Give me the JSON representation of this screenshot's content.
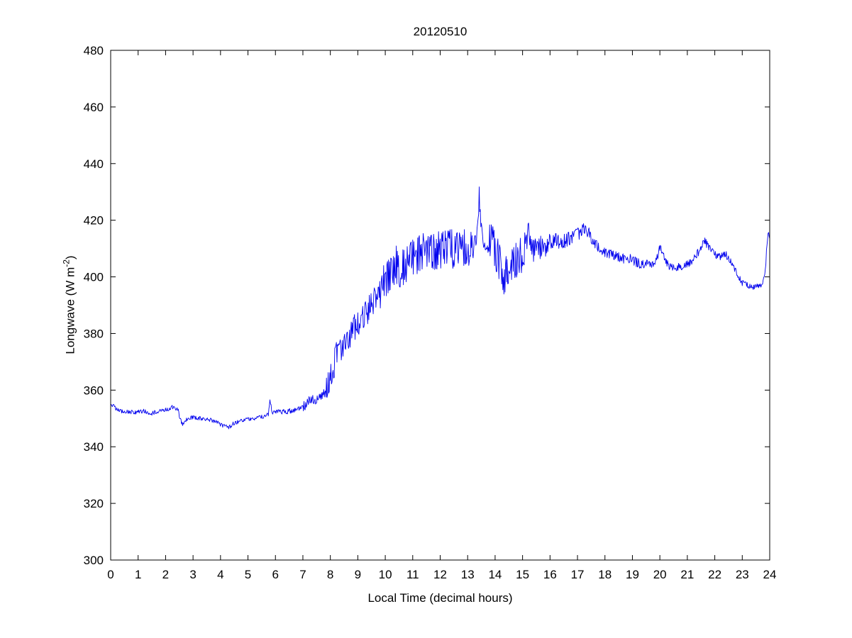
{
  "chart_data": {
    "type": "line",
    "title": "20120510",
    "xlabel": "Local Time (decimal hours)",
    "ylabel": "Longwave (W m-2)",
    "ylabel_parts": {
      "prefix": "Longwave (W m",
      "sup": "-2",
      "suffix": ")"
    },
    "xlim": [
      0,
      24
    ],
    "ylim": [
      300,
      480
    ],
    "x_ticks": [
      0,
      1,
      2,
      3,
      4,
      5,
      6,
      7,
      8,
      9,
      10,
      11,
      12,
      13,
      14,
      15,
      16,
      17,
      18,
      19,
      20,
      21,
      22,
      23,
      24
    ],
    "y_ticks": [
      300,
      320,
      340,
      360,
      380,
      400,
      420,
      440,
      460,
      480
    ],
    "grid": false,
    "legend": "none",
    "line_color": "#0000ee",
    "axes_color": "#000000",
    "background": "#ffffff",
    "y_clamp": [
      344,
      432
    ],
    "series": [
      {
        "name": "longwave",
        "sample_step": 0.02,
        "seed": 20120510,
        "control_points": [
          [
            0,
            355.5
          ],
          [
            0.15,
            353.8
          ],
          [
            0.3,
            352.6
          ],
          [
            0.6,
            352.4
          ],
          [
            0.9,
            352.2
          ],
          [
            1.2,
            352.6
          ],
          [
            1.5,
            351.8
          ],
          [
            1.8,
            352.8
          ],
          [
            2.05,
            353.2
          ],
          [
            2.25,
            354
          ],
          [
            2.45,
            353
          ],
          [
            2.55,
            349.2
          ],
          [
            2.65,
            347.6
          ],
          [
            2.78,
            349.8
          ],
          [
            3,
            350.4
          ],
          [
            3.3,
            350
          ],
          [
            3.6,
            349.6
          ],
          [
            3.9,
            348.4
          ],
          [
            4.1,
            347.4
          ],
          [
            4.3,
            346.8
          ],
          [
            4.5,
            348.4
          ],
          [
            4.8,
            349.4
          ],
          [
            5.1,
            349.8
          ],
          [
            5.4,
            350.4
          ],
          [
            5.6,
            350.8
          ],
          [
            5.75,
            351.8
          ],
          [
            5.8,
            357
          ],
          [
            5.87,
            352.4
          ],
          [
            6.1,
            352.2
          ],
          [
            6.4,
            352.4
          ],
          [
            6.7,
            353
          ],
          [
            7,
            354
          ],
          [
            7.2,
            355.8
          ],
          [
            7.35,
            357.2
          ],
          [
            7.5,
            356.4
          ],
          [
            7.7,
            358
          ],
          [
            7.9,
            361.5
          ],
          [
            8.05,
            366
          ],
          [
            8.2,
            371.5
          ],
          [
            8.3,
            374
          ],
          [
            8.45,
            372.5
          ],
          [
            8.6,
            377.5
          ],
          [
            8.8,
            380.5
          ],
          [
            9,
            383.5
          ],
          [
            9.2,
            386
          ],
          [
            9.4,
            389
          ],
          [
            9.6,
            392
          ],
          [
            9.8,
            395
          ],
          [
            10,
            398.5
          ],
          [
            10.2,
            402
          ],
          [
            10.4,
            404
          ],
          [
            10.6,
            403
          ],
          [
            10.8,
            405.5
          ],
          [
            11,
            406.5
          ],
          [
            11.2,
            407.5
          ],
          [
            11.4,
            408.5
          ],
          [
            11.6,
            408
          ],
          [
            11.8,
            409.5
          ],
          [
            12,
            409
          ],
          [
            12.2,
            410.5
          ],
          [
            12.4,
            410
          ],
          [
            12.6,
            409
          ],
          [
            12.8,
            410
          ],
          [
            13,
            410.5
          ],
          [
            13.2,
            411.5
          ],
          [
            13.35,
            415
          ],
          [
            13.42,
            429
          ],
          [
            13.5,
            416
          ],
          [
            13.65,
            414
          ],
          [
            13.8,
            413
          ],
          [
            14,
            409.5
          ],
          [
            14.2,
            403.5
          ],
          [
            14.35,
            399
          ],
          [
            14.5,
            404.5
          ],
          [
            14.7,
            406.5
          ],
          [
            14.9,
            407
          ],
          [
            15.1,
            409
          ],
          [
            15.22,
            417
          ],
          [
            15.35,
            409
          ],
          [
            15.55,
            410
          ],
          [
            15.8,
            411
          ],
          [
            16,
            412
          ],
          [
            16.2,
            413
          ],
          [
            16.4,
            412
          ],
          [
            16.6,
            413
          ],
          [
            16.85,
            414
          ],
          [
            17.05,
            415.5
          ],
          [
            17.2,
            418
          ],
          [
            17.35,
            416.5
          ],
          [
            17.55,
            412.5
          ],
          [
            17.75,
            410.5
          ],
          [
            17.95,
            409
          ],
          [
            18.15,
            408
          ],
          [
            18.35,
            407.5
          ],
          [
            18.55,
            407
          ],
          [
            18.75,
            406
          ],
          [
            18.95,
            406.5
          ],
          [
            19.15,
            405
          ],
          [
            19.35,
            404.5
          ],
          [
            19.55,
            405
          ],
          [
            19.75,
            404
          ],
          [
            19.92,
            407.5
          ],
          [
            20.02,
            411
          ],
          [
            20.12,
            407.5
          ],
          [
            20.3,
            404
          ],
          [
            20.5,
            403
          ],
          [
            20.7,
            403.5
          ],
          [
            20.9,
            404.2
          ],
          [
            21.1,
            405
          ],
          [
            21.3,
            407
          ],
          [
            21.5,
            410.5
          ],
          [
            21.65,
            412.5
          ],
          [
            21.8,
            410
          ],
          [
            22,
            408
          ],
          [
            22.2,
            407
          ],
          [
            22.4,
            408
          ],
          [
            22.6,
            405.5
          ],
          [
            22.8,
            401.5
          ],
          [
            23,
            398
          ],
          [
            23.2,
            397
          ],
          [
            23.4,
            396.3
          ],
          [
            23.6,
            396.8
          ],
          [
            23.75,
            397.3
          ],
          [
            23.85,
            404
          ],
          [
            23.9,
            412
          ],
          [
            23.95,
            416.5
          ],
          [
            24,
            414.5
          ]
        ],
        "noise_segments": [
          {
            "from": 0,
            "to": 5.7,
            "amp": 0.7
          },
          {
            "from": 5.7,
            "to": 7,
            "amp": 0.9
          },
          {
            "from": 7,
            "to": 7.8,
            "amp": 2
          },
          {
            "from": 7.8,
            "to": 9.8,
            "amp": 5
          },
          {
            "from": 9.8,
            "to": 13.3,
            "amp": 7
          },
          {
            "from": 13.3,
            "to": 13.55,
            "amp": 3
          },
          {
            "from": 13.55,
            "to": 15.1,
            "amp": 7
          },
          {
            "from": 15.1,
            "to": 15.35,
            "amp": 4
          },
          {
            "from": 15.35,
            "to": 16,
            "amp": 4
          },
          {
            "from": 16,
            "to": 17.5,
            "amp": 2.5
          },
          {
            "from": 17.5,
            "to": 19.5,
            "amp": 1.8
          },
          {
            "from": 19.5,
            "to": 23,
            "amp": 1.4
          },
          {
            "from": 23,
            "to": 23.8,
            "amp": 0.9
          },
          {
            "from": 23.8,
            "to": 24.01,
            "amp": 1.2
          }
        ]
      }
    ]
  }
}
